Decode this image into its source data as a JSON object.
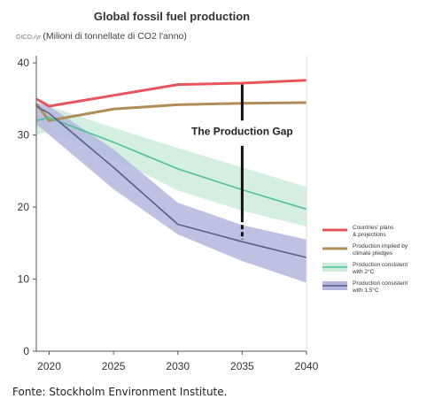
{
  "chart_data": {
    "type": "line",
    "title": "Global fossil fuel production",
    "ylabel_unit": "GtCO₂/yr",
    "ylabel_note": "(Milioni di tonnellate di CO2 l'anno)",
    "x": [
      2019,
      2020,
      2025,
      2030,
      2035,
      2040
    ],
    "xticks": [
      "2020",
      "2025",
      "2030",
      "2035",
      "2040"
    ],
    "yticks": [
      "0",
      "10",
      "20",
      "30",
      "40"
    ],
    "xlim": [
      2019,
      2040
    ],
    "ylim": [
      0,
      41
    ],
    "grid": false,
    "legend_position": "right",
    "series": [
      {
        "name": "Countries' plans & projections",
        "name_lines": [
          "Countries' plans",
          "& projections"
        ],
        "color": "#e8545a",
        "values": [
          35,
          34,
          35.5,
          37,
          37.2,
          37.6
        ]
      },
      {
        "name": "Production implied by climate pledges",
        "name_lines": [
          "Production implied by",
          "climate pledges"
        ],
        "color": "#b08d57",
        "values": [
          34.3,
          32,
          33.6,
          34.2,
          34.4,
          34.5
        ]
      },
      {
        "name": "Production consistent with 2°C",
        "name_lines": [
          "Production consistent",
          "with 2°C"
        ],
        "color": "#4dbf9a",
        "values": [
          32,
          32.4,
          29,
          25.3,
          22.4,
          19.7
        ],
        "band_upper": [
          32.5,
          34,
          31,
          28.2,
          25.5,
          22.8
        ],
        "band_lower": [
          30,
          30.5,
          26.8,
          22.3,
          19.5,
          17.3
        ],
        "band_color": "#cdebd9"
      },
      {
        "name": "Production consistent with 1.5°C",
        "name_lines": [
          "Production consistent",
          "with 1.5°C"
        ],
        "color": "#5b5d8a",
        "values": [
          34,
          33,
          25.5,
          17.6,
          15.2,
          13
        ],
        "band_upper": [
          34.5,
          34,
          28,
          20.6,
          17.5,
          15.5
        ],
        "band_lower": [
          31.5,
          30,
          22.5,
          16.2,
          12.5,
          9.5
        ],
        "band_color": "#b4b6de"
      }
    ],
    "annotations": [
      {
        "text": "The Production Gap",
        "x": 2035,
        "y_top": 37,
        "y_bottom": 15.5
      }
    ]
  },
  "source_text": "Fonte: Stockholm Environment Institute."
}
